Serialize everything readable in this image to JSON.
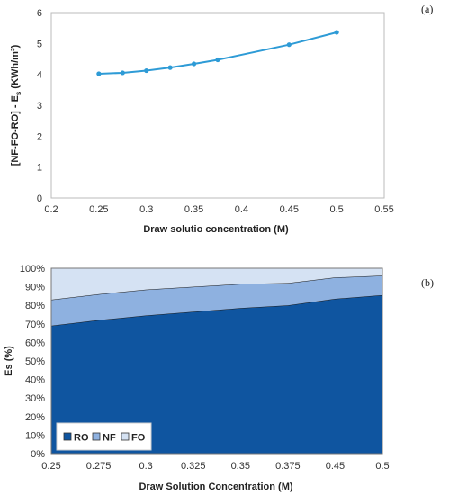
{
  "chart_data": [
    {
      "panel_label": "(a)",
      "type": "line",
      "xlabel": "Draw solutio concentration (M)",
      "ylabel_main": "[NF-FO-RO] - E",
      "ylabel_sub": "s",
      "ylabel_unit": " (KWh/m³)",
      "xlim": [
        0.2,
        0.55
      ],
      "ylim": [
        0,
        6
      ],
      "xticks": [
        "0.2",
        "0.25",
        "0.3",
        "0.35",
        "0.4",
        "0.45",
        "0.5",
        "0.55"
      ],
      "yticks": [
        "0",
        "1",
        "2",
        "3",
        "4",
        "5",
        "6"
      ],
      "grid": false,
      "color": "#2e9bd6",
      "series": [
        {
          "x": [
            0.25,
            0.275,
            0.3,
            0.325,
            0.35,
            0.375,
            0.45,
            0.5
          ],
          "y": [
            4.02,
            4.05,
            4.12,
            4.22,
            4.34,
            4.47,
            4.96,
            5.36
          ]
        }
      ]
    },
    {
      "panel_label": "(b)",
      "type": "area",
      "stacked": true,
      "xlabel": "Draw Solution Concentration (M)",
      "ylabel": "Es (%)",
      "categories": [
        "0.25",
        "0.275",
        "0.3",
        "0.325",
        "0.35",
        "0.375",
        "0.45",
        "0.5"
      ],
      "ylim": [
        0,
        100
      ],
      "yticks": [
        "0%",
        "10%",
        "20%",
        "30%",
        "40%",
        "50%",
        "60%",
        "70%",
        "80%",
        "90%",
        "100%"
      ],
      "grid": false,
      "legend_position": "bottom-left",
      "series": [
        {
          "name": "RO",
          "color": "#0f55a0",
          "values": [
            69,
            72,
            74.5,
            76.5,
            78.5,
            80,
            83.5,
            85.5
          ]
        },
        {
          "name": "NF",
          "color": "#8eb1e0",
          "values": [
            14,
            14,
            14,
            13.5,
            13,
            12,
            11.5,
            10.5
          ]
        },
        {
          "name": "FO",
          "color": "#d5e2f3",
          "values": [
            17,
            14,
            11.5,
            10,
            8.5,
            8,
            5,
            4
          ]
        }
      ]
    }
  ]
}
